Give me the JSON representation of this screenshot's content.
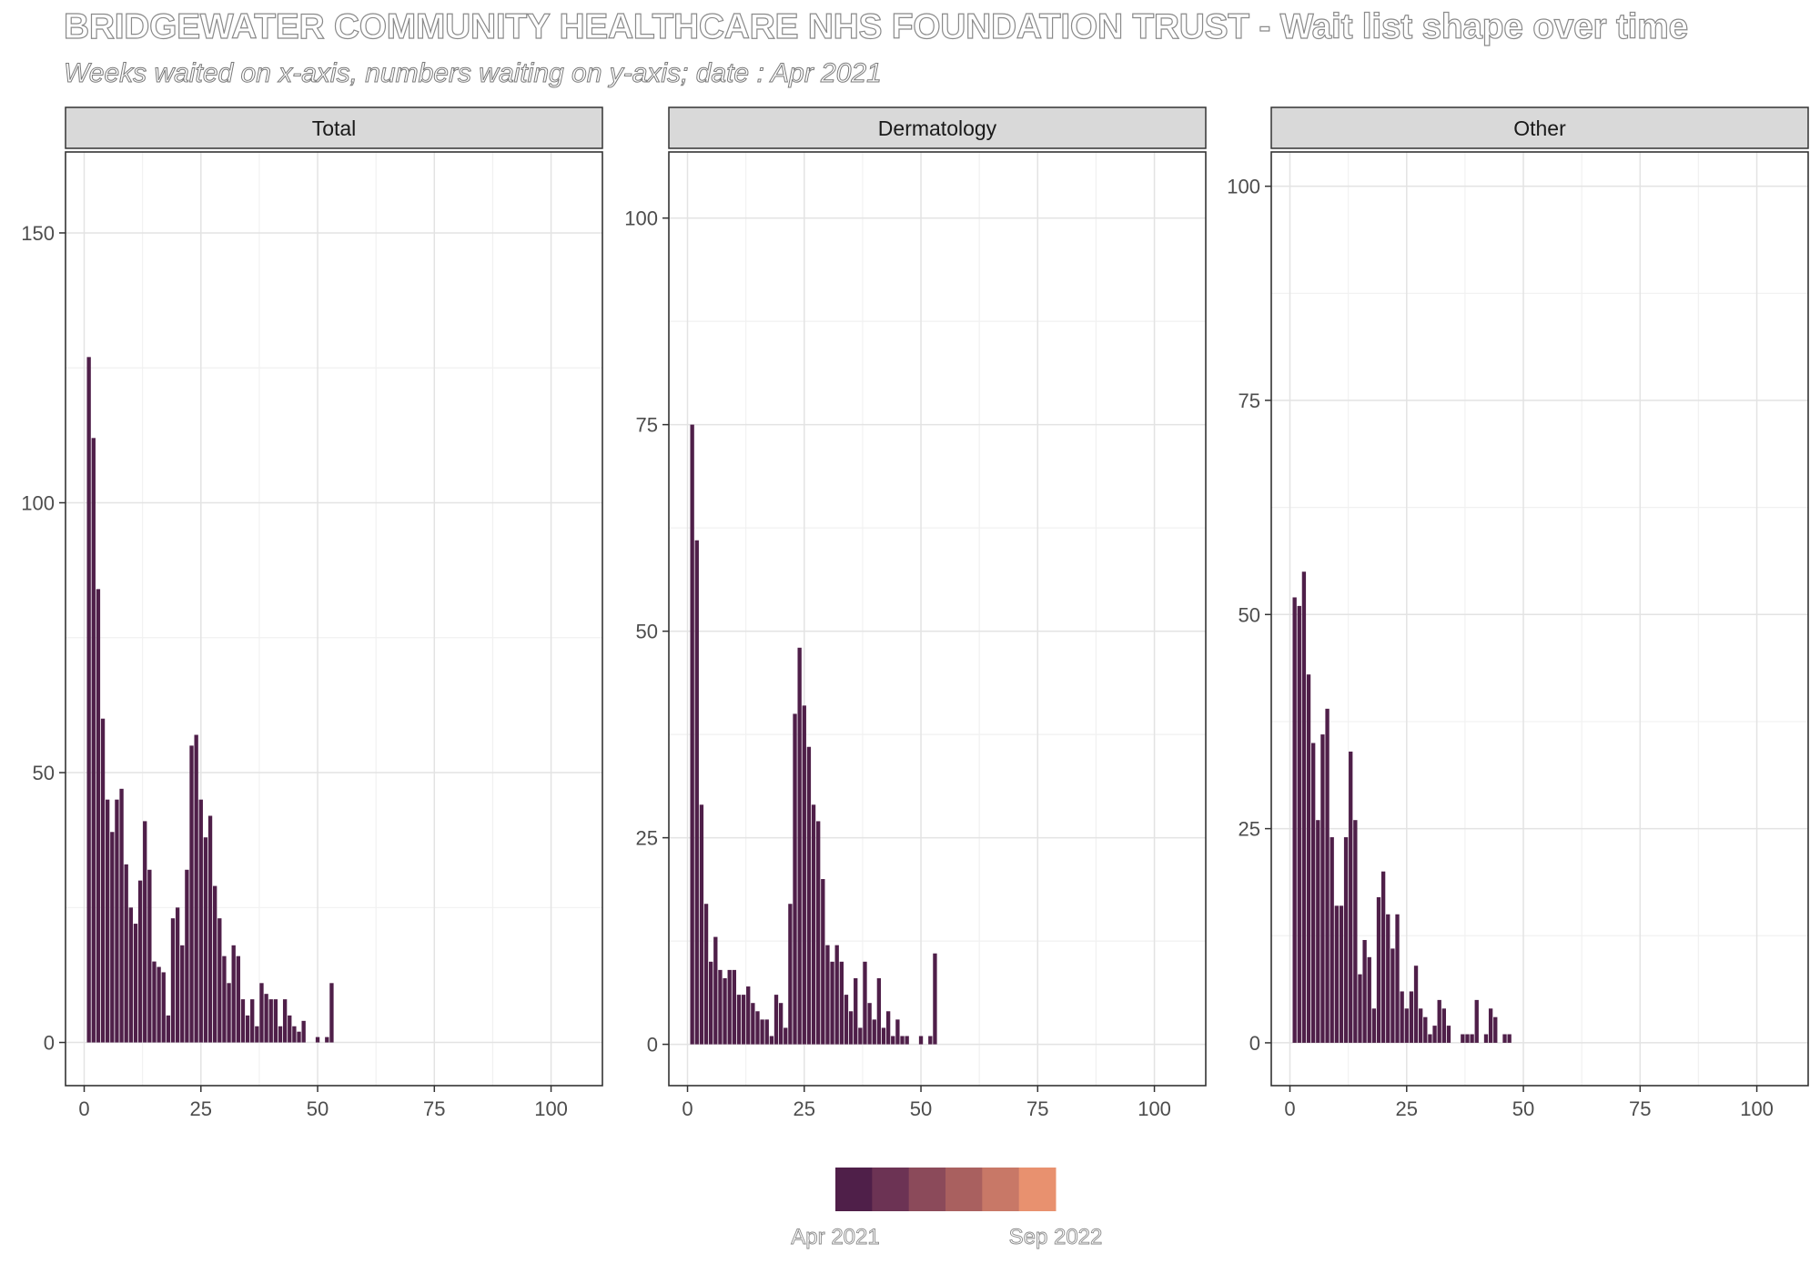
{
  "title": "BRIDGEWATER COMMUNITY HEALTHCARE NHS FOUNDATION TRUST - Wait list shape over time",
  "subtitle": "Weeks waited on x-axis, numbers waiting on y-axis; date : Apr 2021",
  "legend": {
    "colors": [
      "#4f1f49",
      "#6c3354",
      "#8b4a5a",
      "#a9605f",
      "#c87867",
      "#e8916f"
    ],
    "start_label": "Apr 2021",
    "end_label": "Sep 2022"
  },
  "chart_data": [
    {
      "type": "bar",
      "panel": "Total",
      "bar_color": "#4f1f49",
      "xlim": [
        -4,
        111
      ],
      "ylim": [
        -8,
        165
      ],
      "xticks": [
        0,
        25,
        50,
        75,
        100
      ],
      "yticks": [
        0,
        50,
        100,
        150
      ],
      "x": [
        1,
        2,
        3,
        4,
        5,
        6,
        7,
        8,
        9,
        10,
        11,
        12,
        13,
        14,
        15,
        16,
        17,
        18,
        19,
        20,
        21,
        22,
        23,
        24,
        25,
        26,
        27,
        28,
        29,
        30,
        31,
        32,
        33,
        34,
        35,
        36,
        37,
        38,
        39,
        40,
        41,
        42,
        43,
        44,
        45,
        46,
        47,
        48,
        49,
        50,
        51,
        52,
        53
      ],
      "values": [
        127,
        112,
        84,
        60,
        45,
        39,
        45,
        47,
        33,
        25,
        22,
        30,
        41,
        32,
        15,
        14,
        13,
        5,
        23,
        25,
        18,
        32,
        55,
        57,
        45,
        38,
        42,
        29,
        23,
        16,
        11,
        18,
        16,
        8,
        5,
        8,
        3,
        11,
        9,
        8,
        8,
        3,
        8,
        5,
        3,
        2,
        4,
        0,
        0,
        1,
        0,
        1,
        11
      ]
    },
    {
      "type": "bar",
      "panel": "Dermatology",
      "bar_color": "#4f1f49",
      "xlim": [
        -4,
        111
      ],
      "ylim": [
        -5,
        108
      ],
      "xticks": [
        0,
        25,
        50,
        75,
        100
      ],
      "yticks": [
        0,
        25,
        50,
        75,
        100
      ],
      "x": [
        1,
        2,
        3,
        4,
        5,
        6,
        7,
        8,
        9,
        10,
        11,
        12,
        13,
        14,
        15,
        16,
        17,
        18,
        19,
        20,
        21,
        22,
        23,
        24,
        25,
        26,
        27,
        28,
        29,
        30,
        31,
        32,
        33,
        34,
        35,
        36,
        37,
        38,
        39,
        40,
        41,
        42,
        43,
        44,
        45,
        46,
        47,
        48,
        49,
        50,
        51,
        52,
        53
      ],
      "values": [
        75,
        61,
        29,
        17,
        10,
        13,
        9,
        8,
        9,
        9,
        6,
        6,
        7,
        5,
        4,
        3,
        3,
        1,
        6,
        5,
        2,
        17,
        40,
        48,
        41,
        36,
        29,
        27,
        20,
        12,
        10,
        12,
        10,
        6,
        4,
        8,
        2,
        10,
        5,
        3,
        8,
        2,
        4,
        1,
        3,
        1,
        1,
        0,
        0,
        1,
        0,
        1,
        11
      ]
    },
    {
      "type": "bar",
      "panel": "Other",
      "bar_color": "#4f1f49",
      "xlim": [
        -4,
        111
      ],
      "ylim": [
        -5,
        104
      ],
      "xticks": [
        0,
        25,
        50,
        75,
        100
      ],
      "yticks": [
        0,
        25,
        50,
        75,
        100
      ],
      "x": [
        1,
        2,
        3,
        4,
        5,
        6,
        7,
        8,
        9,
        10,
        11,
        12,
        13,
        14,
        15,
        16,
        17,
        18,
        19,
        20,
        21,
        22,
        23,
        24,
        25,
        26,
        27,
        28,
        29,
        30,
        31,
        32,
        33,
        34,
        35,
        36,
        37,
        38,
        39,
        40,
        41,
        42,
        43,
        44,
        45,
        46,
        47
      ],
      "values": [
        52,
        51,
        55,
        43,
        35,
        26,
        36,
        39,
        24,
        16,
        16,
        24,
        34,
        26,
        8,
        12,
        10,
        4,
        17,
        20,
        15,
        11,
        15,
        6,
        4,
        6,
        9,
        4,
        3,
        1,
        2,
        5,
        4,
        2,
        0,
        0,
        1,
        1,
        1,
        5,
        0,
        1,
        4,
        3,
        0,
        1,
        1
      ]
    }
  ]
}
